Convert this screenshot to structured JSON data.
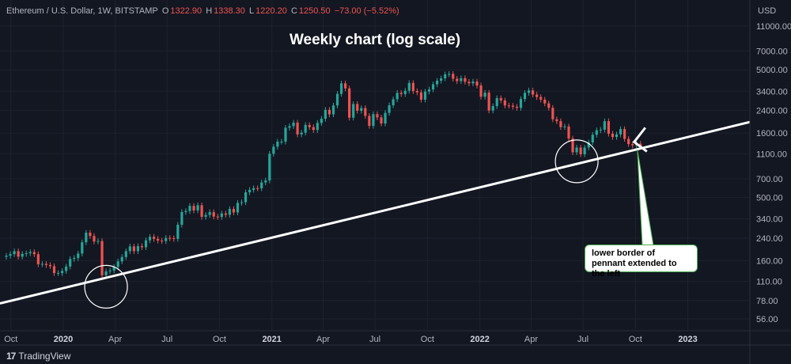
{
  "header": {
    "symbol": "Ethereum / U.S. Dollar, 1W, BITSTAMP",
    "open_label": "O",
    "open": "1322.90",
    "high_label": "H",
    "high": "1338.30",
    "low_label": "L",
    "low": "1220.20",
    "close_label": "C",
    "close": "1250.50",
    "change": "−73.00 (−5.52%)"
  },
  "currency": "USD",
  "brand": "TradingView",
  "colors": {
    "background": "#131722",
    "up": "#26a69a",
    "down": "#ef5350",
    "trendline": "#ffffff",
    "annotation_border": "#4caf50"
  },
  "chart_data": {
    "type": "candlestick",
    "title": "Weekly chart (log scale)",
    "y_scale": "log",
    "ylim": [
      50,
      14000
    ],
    "y_ticks": [
      {
        "value": 56,
        "label": "56.00"
      },
      {
        "value": 78,
        "label": "78.00"
      },
      {
        "value": 110,
        "label": "110.00"
      },
      {
        "value": 160,
        "label": "160.00"
      },
      {
        "value": 240,
        "label": "240.00"
      },
      {
        "value": 340,
        "label": "340.00"
      },
      {
        "value": 500,
        "label": "500.00"
      },
      {
        "value": 700,
        "label": "700.00"
      },
      {
        "value": 1100,
        "label": "1100.00"
      },
      {
        "value": 1600,
        "label": "1600.00"
      },
      {
        "value": 2400,
        "label": "2400.00"
      },
      {
        "value": 3400,
        "label": "3400.00"
      },
      {
        "value": 5000,
        "label": "5000.00"
      },
      {
        "value": 7000,
        "label": "7000.00"
      },
      {
        "value": 11000,
        "label": "11000.00"
      }
    ],
    "x_ticks": [
      {
        "date": "2019-10-01",
        "label": "Oct",
        "bold": false
      },
      {
        "date": "2020-01-01",
        "label": "2020",
        "bold": true
      },
      {
        "date": "2020-04-01",
        "label": "Apr",
        "bold": false
      },
      {
        "date": "2020-07-01",
        "label": "Jul",
        "bold": false
      },
      {
        "date": "2020-10-01",
        "label": "Oct",
        "bold": false
      },
      {
        "date": "2021-01-01",
        "label": "2021",
        "bold": true
      },
      {
        "date": "2021-04-01",
        "label": "Apr",
        "bold": false
      },
      {
        "date": "2021-07-01",
        "label": "Jul",
        "bold": false
      },
      {
        "date": "2021-10-01",
        "label": "Oct",
        "bold": false
      },
      {
        "date": "2022-01-01",
        "label": "2022",
        "bold": true
      },
      {
        "date": "2022-04-01",
        "label": "Apr",
        "bold": false
      },
      {
        "date": "2022-07-01",
        "label": "Jul",
        "bold": false
      },
      {
        "date": "2022-10-01",
        "label": "Oct",
        "bold": false
      },
      {
        "date": "2023-01-01",
        "label": "2023",
        "bold": true
      }
    ],
    "x_range": [
      "2019-09-23",
      "2023-05-01"
    ],
    "weekly_close": [
      [
        "2019-09-23",
        175
      ],
      [
        "2019-09-30",
        180
      ],
      [
        "2019-10-07",
        190
      ],
      [
        "2019-10-14",
        172
      ],
      [
        "2019-10-21",
        181
      ],
      [
        "2019-10-28",
        183
      ],
      [
        "2019-11-04",
        187
      ],
      [
        "2019-11-11",
        180
      ],
      [
        "2019-11-18",
        150
      ],
      [
        "2019-11-25",
        151
      ],
      [
        "2019-12-02",
        148
      ],
      [
        "2019-12-09",
        145
      ],
      [
        "2019-12-16",
        128
      ],
      [
        "2019-12-23",
        128
      ],
      [
        "2019-12-30",
        133
      ],
      [
        "2020-01-06",
        144
      ],
      [
        "2020-01-13",
        165
      ],
      [
        "2020-01-20",
        168
      ],
      [
        "2020-01-27",
        182
      ],
      [
        "2020-02-03",
        223
      ],
      [
        "2020-02-10",
        265
      ],
      [
        "2020-02-17",
        250
      ],
      [
        "2020-02-24",
        226
      ],
      [
        "2020-03-02",
        228
      ],
      [
        "2020-03-09",
        123
      ],
      [
        "2020-03-16",
        132
      ],
      [
        "2020-03-23",
        134
      ],
      [
        "2020-03-30",
        143
      ],
      [
        "2020-04-06",
        158
      ],
      [
        "2020-04-13",
        171
      ],
      [
        "2020-04-20",
        190
      ],
      [
        "2020-04-27",
        207
      ],
      [
        "2020-05-04",
        190
      ],
      [
        "2020-05-11",
        208
      ],
      [
        "2020-05-18",
        204
      ],
      [
        "2020-05-25",
        231
      ],
      [
        "2020-06-01",
        246
      ],
      [
        "2020-06-08",
        237
      ],
      [
        "2020-06-15",
        230
      ],
      [
        "2020-06-22",
        228
      ],
      [
        "2020-06-29",
        241
      ],
      [
        "2020-07-06",
        240
      ],
      [
        "2020-07-13",
        237
      ],
      [
        "2020-07-20",
        306
      ],
      [
        "2020-07-27",
        385
      ],
      [
        "2020-08-03",
        392
      ],
      [
        "2020-08-10",
        430
      ],
      [
        "2020-08-17",
        396
      ],
      [
        "2020-08-24",
        435
      ],
      [
        "2020-08-31",
        353
      ],
      [
        "2020-09-07",
        365
      ],
      [
        "2020-09-14",
        384
      ],
      [
        "2020-09-21",
        355
      ],
      [
        "2020-09-28",
        352
      ],
      [
        "2020-10-05",
        375
      ],
      [
        "2020-10-12",
        366
      ],
      [
        "2020-10-19",
        407
      ],
      [
        "2020-10-26",
        382
      ],
      [
        "2020-11-02",
        454
      ],
      [
        "2020-11-09",
        459
      ],
      [
        "2020-11-16",
        549
      ],
      [
        "2020-11-23",
        574
      ],
      [
        "2020-11-30",
        592
      ],
      [
        "2020-12-07",
        590
      ],
      [
        "2020-12-14",
        656
      ],
      [
        "2020-12-21",
        680
      ],
      [
        "2020-12-28",
        1100
      ],
      [
        "2021-01-04",
        1250
      ],
      [
        "2021-01-11",
        1370
      ],
      [
        "2021-01-18",
        1370
      ],
      [
        "2021-01-25",
        1760
      ],
      [
        "2021-02-01",
        1810
      ],
      [
        "2021-02-08",
        1930
      ],
      [
        "2021-02-15",
        1560
      ],
      [
        "2021-02-22",
        1610
      ],
      [
        "2021-03-01",
        1850
      ],
      [
        "2021-03-08",
        1780
      ],
      [
        "2021-03-15",
        1690
      ],
      [
        "2021-03-22",
        1920
      ],
      [
        "2021-03-29",
        2070
      ],
      [
        "2021-04-05",
        2430
      ],
      [
        "2021-04-12",
        2240
      ],
      [
        "2021-04-19",
        2630
      ],
      [
        "2021-04-26",
        3240
      ],
      [
        "2021-05-03",
        3920
      ],
      [
        "2021-05-10",
        3580
      ],
      [
        "2021-05-17",
        2110
      ],
      [
        "2021-05-24",
        2700
      ],
      [
        "2021-05-31",
        2390
      ],
      [
        "2021-06-07",
        2510
      ],
      [
        "2021-06-14",
        2180
      ],
      [
        "2021-06-21",
        1820
      ],
      [
        "2021-06-28",
        2250
      ],
      [
        "2021-07-05",
        2120
      ],
      [
        "2021-07-12",
        1900
      ],
      [
        "2021-07-19",
        2300
      ],
      [
        "2021-07-26",
        2640
      ],
      [
        "2021-08-02",
        2940
      ],
      [
        "2021-08-09",
        3300
      ],
      [
        "2021-08-16",
        3230
      ],
      [
        "2021-08-23",
        3430
      ],
      [
        "2021-08-30",
        3950
      ],
      [
        "2021-09-06",
        3410
      ],
      [
        "2021-09-13",
        3330
      ],
      [
        "2021-09-20",
        2920
      ],
      [
        "2021-09-27",
        3380
      ],
      [
        "2021-10-04",
        3510
      ],
      [
        "2021-10-11",
        3850
      ],
      [
        "2021-10-18",
        4110
      ],
      [
        "2021-10-25",
        4290
      ],
      [
        "2021-11-01",
        4610
      ],
      [
        "2021-11-08",
        4650
      ],
      [
        "2021-11-15",
        4260
      ],
      [
        "2021-11-22",
        4080
      ],
      [
        "2021-11-29",
        4300
      ],
      [
        "2021-12-06",
        4030
      ],
      [
        "2021-12-13",
        3920
      ],
      [
        "2021-12-20",
        4050
      ],
      [
        "2021-12-27",
        3770
      ],
      [
        "2022-01-03",
        3080
      ],
      [
        "2022-01-10",
        3310
      ],
      [
        "2022-01-17",
        2400
      ],
      [
        "2022-01-24",
        2600
      ],
      [
        "2022-01-31",
        3000
      ],
      [
        "2022-02-07",
        2880
      ],
      [
        "2022-02-14",
        2630
      ],
      [
        "2022-02-21",
        2620
      ],
      [
        "2022-02-28",
        2570
      ],
      [
        "2022-03-07",
        2520
      ],
      [
        "2022-03-14",
        2950
      ],
      [
        "2022-03-21",
        3300
      ],
      [
        "2022-03-28",
        3450
      ],
      [
        "2022-04-04",
        3200
      ],
      [
        "2022-04-11",
        3060
      ],
      [
        "2022-04-18",
        2920
      ],
      [
        "2022-04-25",
        2730
      ],
      [
        "2022-05-02",
        2520
      ],
      [
        "2022-05-09",
        2050
      ],
      [
        "2022-05-16",
        1980
      ],
      [
        "2022-05-23",
        1780
      ],
      [
        "2022-05-30",
        1800
      ],
      [
        "2022-06-06",
        1450
      ],
      [
        "2022-06-13",
        1130
      ],
      [
        "2022-06-20",
        1230
      ],
      [
        "2022-06-27",
        1090
      ],
      [
        "2022-07-04",
        1230
      ],
      [
        "2022-07-11",
        1350
      ],
      [
        "2022-07-18",
        1550
      ],
      [
        "2022-07-25",
        1680
      ],
      [
        "2022-08-01",
        1700
      ],
      [
        "2022-08-08",
        1980
      ],
      [
        "2022-08-15",
        1580
      ],
      [
        "2022-08-22",
        1490
      ],
      [
        "2022-08-29",
        1560
      ],
      [
        "2022-09-05",
        1720
      ],
      [
        "2022-09-12",
        1440
      ],
      [
        "2022-09-19",
        1310
      ],
      [
        "2022-09-26",
        1280
      ],
      [
        "2022-10-03",
        1320
      ],
      [
        "2022-10-10",
        1250
      ]
    ],
    "trendline": {
      "from": {
        "date": "2019-09-23",
        "value": 74
      },
      "to": {
        "date": "2023-05-01",
        "value": 1950
      }
    },
    "circled_lows": [
      {
        "date": "2020-03-16",
        "value": 100
      },
      {
        "date": "2022-06-20",
        "value": 960
      }
    ],
    "annotation": "lower border of pennant extended to the left"
  }
}
